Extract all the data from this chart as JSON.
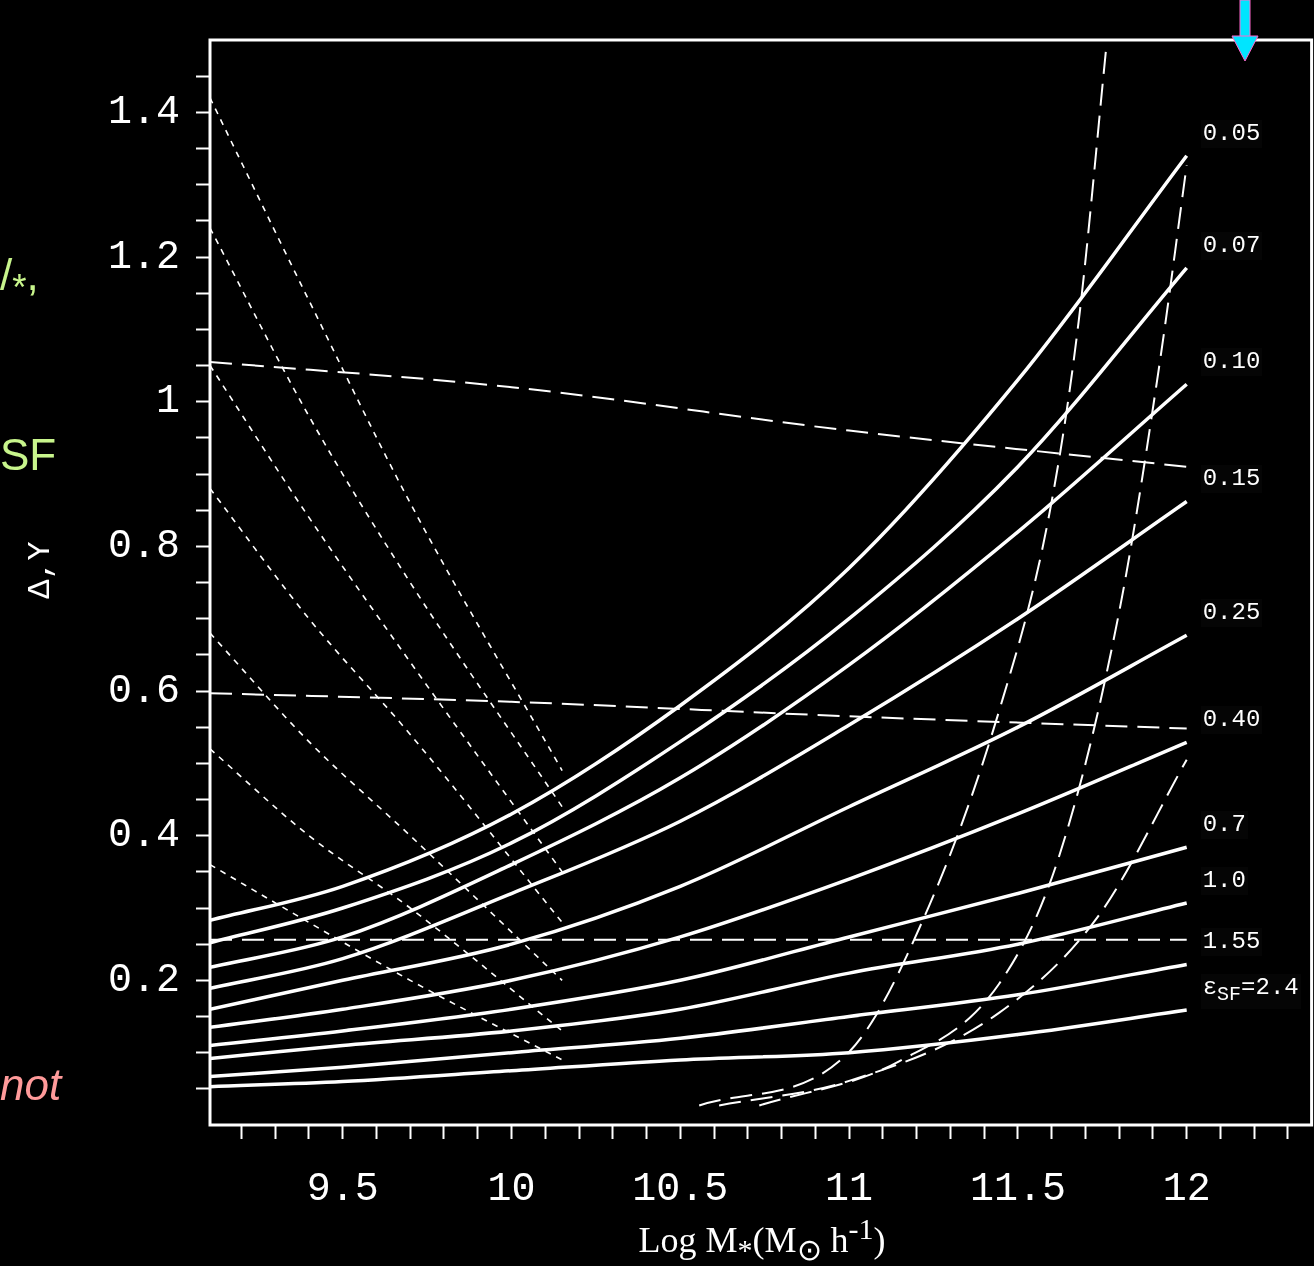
{
  "chart_data": {
    "type": "line",
    "xlabel": "Log M$_{*}$(M$_{⊙}$ h$^{-1}$)",
    "ylabel": "Δ,Y",
    "legend": "right",
    "annotations": [
      "/$_{*}$,",
      "SF",
      "not"
    ],
    "xlim": [
      9.107,
      12.37
    ],
    "ylim": [
      0,
      1.5
    ],
    "xticks": [
      {
        "value": 9.2,
        "label": null
      },
      {
        "value": 9.3,
        "label": null
      },
      {
        "value": 9.4,
        "label": null
      },
      9.5,
      {
        "value": 9.6,
        "label": null
      },
      {
        "value": 9.7,
        "label": null
      },
      {
        "value": 9.8,
        "label": null
      },
      {
        "value": 9.9,
        "label": null
      },
      10,
      {
        "value": 10.1,
        "label": null
      },
      {
        "value": 10.2,
        "label": null
      },
      {
        "value": 10.3,
        "label": null
      },
      {
        "value": 10.4,
        "label": null
      },
      10.5,
      {
        "value": 10.6,
        "label": null
      },
      {
        "value": 10.7,
        "label": null
      },
      {
        "value": 10.8,
        "label": null
      },
      {
        "value": 10.9,
        "label": null
      },
      11,
      {
        "value": 11.1,
        "label": null
      },
      {
        "value": 11.2,
        "label": null
      },
      {
        "value": 11.3,
        "label": null
      },
      {
        "value": 11.4,
        "label": null
      },
      11.5,
      {
        "value": 11.6,
        "label": null
      },
      {
        "value": 11.7,
        "label": null
      },
      {
        "value": 11.8,
        "label": null
      },
      {
        "value": 11.9,
        "label": null
      },
      12,
      {
        "value": 12.1,
        "label": null
      },
      {
        "value": 12.2,
        "label": null
      },
      {
        "value": 12.3,
        "label": null
      }
    ],
    "yticks": [
      {
        "value": 0.05,
        "label": null
      },
      {
        "value": 0.1,
        "label": null
      },
      {
        "value": 0.15,
        "label": null
      },
      0.2,
      {
        "value": 0.25,
        "label": null
      },
      {
        "value": 0.3,
        "label": null
      },
      {
        "value": 0.35,
        "label": null
      },
      0.4,
      {
        "value": 0.45,
        "label": null
      },
      {
        "value": 0.5,
        "label": null
      },
      {
        "value": 0.55,
        "label": null
      },
      0.6,
      {
        "value": 0.65,
        "label": null
      },
      {
        "value": 0.7,
        "label": null
      },
      {
        "value": 0.75,
        "label": null
      },
      0.8,
      {
        "value": 0.85,
        "label": null
      },
      {
        "value": 0.9,
        "label": null
      },
      {
        "value": 0.95,
        "label": null
      },
      1,
      {
        "value": 1.05,
        "label": null
      },
      {
        "value": 1.1,
        "label": null
      },
      {
        "value": 1.15,
        "label": null
      },
      1.2,
      {
        "value": 1.25,
        "label": null
      },
      {
        "value": 1.3,
        "label": null
      },
      {
        "value": 1.35,
        "label": null
      },
      1.4,
      {
        "value": 1.45,
        "label": null
      }
    ],
    "series": [
      {
        "name": "0.05",
        "color": "#ffffff",
        "line_style": "solid",
        "x": [
          9.107,
          9.5,
          10,
          10.5,
          11,
          11.5,
          12
        ],
        "values": [
          0.283,
          0.33,
          0.43,
          0.58,
          0.77,
          1.03,
          1.34
        ]
      },
      {
        "name": "0.07",
        "color": "#ffffff",
        "line_style": "solid",
        "x": [
          9.107,
          9.5,
          10,
          10.5,
          11,
          11.5,
          12
        ],
        "values": [
          0.252,
          0.3,
          0.39,
          0.53,
          0.7,
          0.91,
          1.185
        ]
      },
      {
        "name": "0.10",
        "color": "#ffffff",
        "line_style": "solid",
        "x": [
          9.107,
          9.5,
          10,
          10.5,
          11,
          11.5,
          12
        ],
        "values": [
          0.218,
          0.26,
          0.36,
          0.48,
          0.636,
          0.82,
          1.024
        ]
      },
      {
        "name": "0.15",
        "color": "#ffffff",
        "line_style": "solid",
        "x": [
          9.107,
          9.5,
          10,
          10.5,
          11,
          11.5,
          12
        ],
        "values": [
          0.189,
          0.23,
          0.32,
          0.42,
          0.553,
          0.7,
          0.862
        ]
      },
      {
        "name": "0.25",
        "color": "#ffffff",
        "line_style": "solid",
        "x": [
          9.107,
          9.5,
          10,
          10.5,
          11,
          11.5,
          12
        ],
        "values": [
          0.16,
          0.2,
          0.25,
          0.33,
          0.44,
          0.55,
          0.677
        ]
      },
      {
        "name": "0.40",
        "color": "#ffffff",
        "line_style": "solid",
        "x": [
          9.107,
          9.5,
          10,
          10.5,
          11,
          11.5,
          12
        ],
        "values": [
          0.135,
          0.16,
          0.2,
          0.26,
          0.34,
          0.43,
          0.529
        ]
      },
      {
        "name": "0.7",
        "color": "#ffffff",
        "line_style": "solid",
        "x": [
          9.107,
          9.5,
          10,
          10.5,
          11,
          11.5,
          12
        ],
        "values": [
          0.11,
          0.13,
          0.16,
          0.2,
          0.26,
          0.32,
          0.384
        ]
      },
      {
        "name": "1.0",
        "color": "#ffffff",
        "line_style": "solid",
        "x": [
          9.107,
          9.5,
          10,
          10.5,
          11,
          11.5,
          12
        ],
        "values": [
          0.092,
          0.11,
          0.13,
          0.16,
          0.21,
          0.25,
          0.307
        ]
      },
      {
        "name": "1.55",
        "color": "#ffffff",
        "line_style": "solid",
        "x": [
          9.107,
          9.5,
          10,
          10.5,
          11,
          11.5,
          12
        ],
        "values": [
          0.067,
          0.08,
          0.1,
          0.12,
          0.15,
          0.18,
          0.222
        ]
      },
      {
        "name": "ε$_{SF}$=2.4",
        "color": "#ffffff",
        "line_style": "solid",
        "x": [
          9.107,
          9.5,
          10,
          10.5,
          11,
          11.5,
          12
        ],
        "values": [
          0.053,
          0.06,
          0.075,
          0.09,
          0.1,
          0.125,
          0.159
        ]
      },
      {
        "color": "#ffffff",
        "line_style": "dashed",
        "x": [
          9.107,
          10,
          11,
          12
        ],
        "values": [
          1.055,
          1.02,
          0.96,
          0.91
        ]
      },
      {
        "color": "#ffffff",
        "line_style": "dashed",
        "x": [
          9.107,
          10,
          11,
          12
        ],
        "values": [
          0.597,
          0.585,
          0.565,
          0.548
        ]
      },
      {
        "color": "#ffffff",
        "line_style": "dashed",
        "x": [
          9.107,
          10,
          11,
          12
        ],
        "values": [
          0.256,
          0.256,
          0.256,
          0.256
        ]
      },
      {
        "color": "#ffffff",
        "line_style": "dotted",
        "x": [
          9.107,
          9.4,
          9.7,
          10.15
        ],
        "values": [
          1.42,
          1.14,
          0.86,
          0.49
        ]
      },
      {
        "color": "#ffffff",
        "line_style": "dotted",
        "x": [
          9.107,
          9.4,
          9.7,
          10.15
        ],
        "values": [
          1.24,
          0.98,
          0.75,
          0.44
        ]
      },
      {
        "color": "#ffffff",
        "line_style": "dotted",
        "x": [
          9.107,
          9.4,
          9.7,
          10.15
        ],
        "values": [
          1.05,
          0.84,
          0.64,
          0.35
        ]
      },
      {
        "color": "#ffffff",
        "line_style": "dotted",
        "x": [
          9.107,
          9.4,
          9.7,
          10.15
        ],
        "values": [
          0.88,
          0.7,
          0.54,
          0.28
        ]
      },
      {
        "color": "#ffffff",
        "line_style": "dotted",
        "x": [
          9.107,
          9.4,
          9.7,
          10.15
        ],
        "values": [
          0.68,
          0.53,
          0.4,
          0.2
        ]
      },
      {
        "color": "#ffffff",
        "line_style": "dotted",
        "x": [
          9.107,
          9.4,
          9.7,
          10.15
        ],
        "values": [
          0.52,
          0.4,
          0.3,
          0.13
        ]
      },
      {
        "color": "#ffffff",
        "line_style": "dotted",
        "x": [
          9.107,
          9.4,
          9.7,
          10.15
        ],
        "values": [
          0.36,
          0.28,
          0.2,
          0.09
        ]
      },
      {
        "color": "#ffffff",
        "line_style": "dashed",
        "x": [
          10.556,
          11.0,
          11.237,
          11.444,
          11.592,
          11.68,
          11.763
        ],
        "values": [
          0.027,
          0.101,
          0.303,
          0.572,
          0.842,
          1.111,
          1.496
        ]
      },
      {
        "color": "#ffffff",
        "line_style": "dashed",
        "x": [
          10.734,
          11.148,
          11.444,
          11.621,
          11.799,
          11.917,
          12.0
        ],
        "values": [
          0.027,
          0.088,
          0.195,
          0.37,
          0.707,
          1.044,
          1.327
        ]
      },
      {
        "color": "#ffffff",
        "line_style": "dashed",
        "x": [
          10.615,
          11.0,
          11.444,
          11.74,
          12.0
        ],
        "values": [
          0.027,
          0.061,
          0.155,
          0.29,
          0.505
        ]
      }
    ]
  }
}
